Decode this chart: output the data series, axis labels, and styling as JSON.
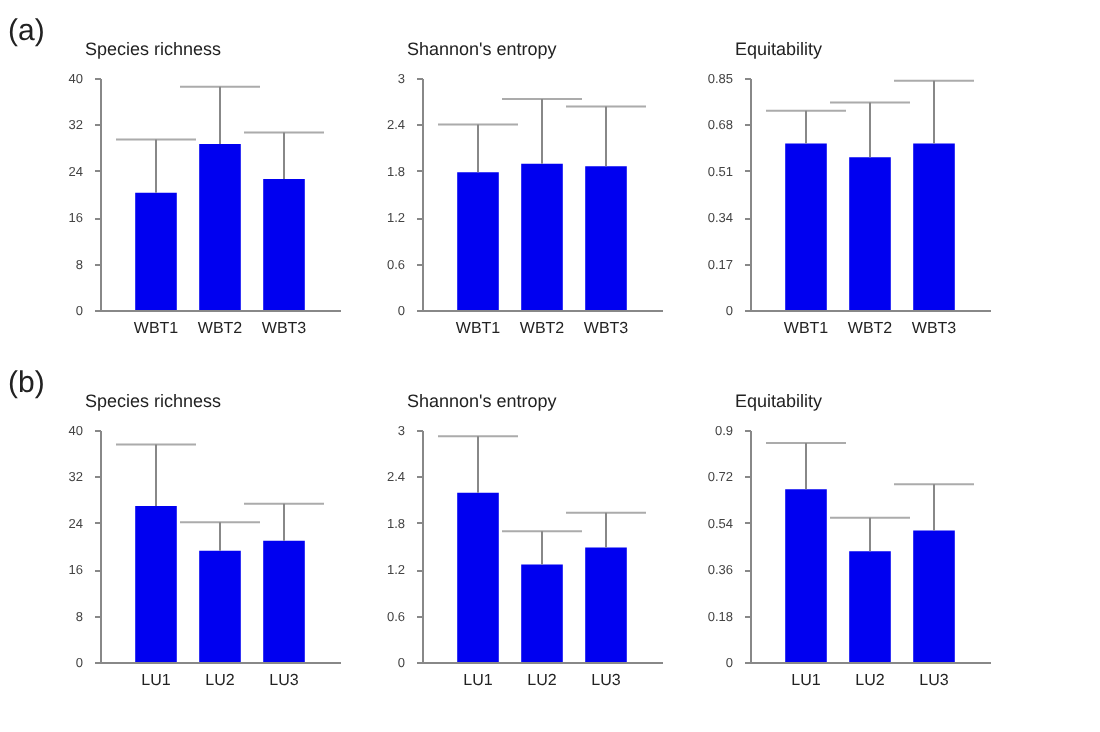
{
  "chart_data": [
    {
      "type": "bar",
      "ylabel": "Species richness",
      "annotations": [
        "(a)"
      ],
      "categories": [
        "WBT1",
        "WBT2",
        "WBT3"
      ],
      "values": [
        20.2,
        28.6,
        22.6
      ],
      "errors": [
        [
          20.2,
          29.4
        ],
        [
          28.6,
          38.5
        ],
        [
          22.6,
          30.6
        ]
      ],
      "color": "#0000f0",
      "ylim": [
        0,
        40
      ],
      "yticks": [
        0,
        8,
        16,
        24,
        32,
        40
      ],
      "grid": false
    },
    {
      "type": "bar",
      "ylabel": "Shannon's entropy",
      "categories": [
        "WBT1",
        "WBT2",
        "WBT3"
      ],
      "values": [
        1.78,
        1.89,
        1.86
      ],
      "errors": [
        [
          1.78,
          2.4
        ],
        [
          1.89,
          2.73
        ],
        [
          1.86,
          2.63
        ]
      ],
      "color": "#0000f0",
      "ylim": [
        0,
        3
      ],
      "yticks": [
        0,
        0.6,
        1.2,
        1.8,
        2.4,
        3
      ],
      "grid": false
    },
    {
      "type": "bar",
      "ylabel": "Equitability",
      "categories": [
        "WBT1",
        "WBT2",
        "WBT3"
      ],
      "values": [
        0.61,
        0.56,
        0.61
      ],
      "errors": [
        [
          0.61,
          0.73
        ],
        [
          0.56,
          0.76
        ],
        [
          0.61,
          0.84
        ]
      ],
      "color": "#0000f0",
      "ylim": [
        0,
        0.85
      ],
      "yticks": [
        0,
        0.17,
        0.34,
        0.51,
        0.68,
        0.85
      ],
      "grid": false
    },
    {
      "type": "bar",
      "ylabel": "Species richness",
      "annotations": [
        "(b)"
      ],
      "categories": [
        "LU1",
        "LU2",
        "LU3"
      ],
      "values": [
        26.9,
        19.2,
        20.9
      ],
      "errors": [
        [
          26.9,
          37.5
        ],
        [
          19.2,
          24.1
        ],
        [
          20.9,
          27.3
        ]
      ],
      "color": "#0000f0",
      "ylim": [
        0,
        40
      ],
      "yticks": [
        0,
        8,
        16,
        24,
        32,
        40
      ],
      "grid": false
    },
    {
      "type": "bar",
      "ylabel": "Shannon's entropy",
      "categories": [
        "LU1",
        "LU2",
        "LU3"
      ],
      "values": [
        2.19,
        1.26,
        1.48
      ],
      "errors": [
        [
          2.19,
          2.92
        ],
        [
          1.26,
          1.69
        ],
        [
          1.48,
          1.93
        ]
      ],
      "color": "#0000f0",
      "ylim": [
        0,
        3
      ],
      "yticks": [
        0,
        0.6,
        1.2,
        1.8,
        2.4,
        3
      ],
      "grid": false
    },
    {
      "type": "bar",
      "ylabel": "Equitability",
      "categories": [
        "LU1",
        "LU2",
        "LU3"
      ],
      "values": [
        0.67,
        0.43,
        0.51
      ],
      "errors": [
        [
          0.67,
          0.85
        ],
        [
          0.43,
          0.56
        ],
        [
          0.51,
          0.69
        ]
      ],
      "color": "#0000f0",
      "ylim": [
        0,
        0.9
      ],
      "yticks": [
        0,
        0.18,
        0.36,
        0.54,
        0.72,
        0.9
      ],
      "grid": false
    }
  ]
}
